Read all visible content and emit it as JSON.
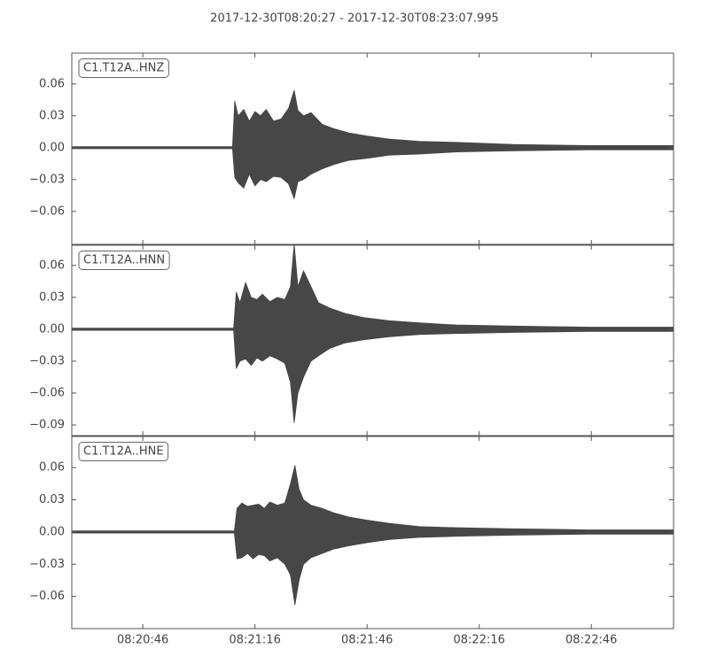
{
  "chart_data": [
    {
      "type": "seismogram",
      "title": "2017-12-30T08:20:27  -  2017-12-30T08:23:07.995",
      "label": "C1.T12A..HNZ",
      "color": "#474747",
      "xlim": [
        "08:20:27",
        "08:23:07.995"
      ],
      "ylim": [
        -0.091,
        0.089
      ],
      "yticks": [
        0.06,
        0.03,
        {
          "value": 0,
          "label": "0.00"
        },
        {
          "value": -0.03,
          "label": "−0.03"
        },
        {
          "value": -0.06,
          "label": "−0.06"
        }
      ],
      "x": [
        "08:20:27",
        "08:21:10",
        "08:21:10.6",
        "08:21:11.5",
        "08:21:13",
        "08:21:14.5",
        "08:21:16",
        "08:21:17.5",
        "08:21:19",
        "08:21:21",
        "08:21:23",
        "08:21:25",
        "08:21:26.5",
        "08:21:27.5",
        "08:21:29",
        "08:21:31",
        "08:21:34",
        "08:21:37",
        "08:21:41",
        "08:21:46",
        "08:21:52",
        "08:22:00",
        "08:22:10",
        "08:22:25",
        "08:22:45",
        "08:23:07.995"
      ],
      "upper": [
        0.001,
        0.001,
        0.044,
        0.03,
        0.036,
        0.025,
        0.034,
        0.03,
        0.036,
        0.025,
        0.027,
        0.037,
        0.054,
        0.035,
        0.03,
        0.033,
        0.022,
        0.018,
        0.014,
        0.011,
        0.008,
        0.006,
        0.005,
        0.003,
        0.002,
        0.002
      ],
      "lower": [
        -0.001,
        -0.001,
        -0.028,
        -0.033,
        -0.038,
        -0.025,
        -0.036,
        -0.03,
        -0.032,
        -0.027,
        -0.028,
        -0.034,
        -0.048,
        -0.032,
        -0.03,
        -0.025,
        -0.02,
        -0.016,
        -0.012,
        -0.01,
        -0.007,
        -0.006,
        -0.004,
        -0.003,
        -0.002,
        -0.002
      ]
    },
    {
      "type": "seismogram",
      "label": "C1.T12A..HNN",
      "color": "#474747",
      "xlim": [
        "08:20:27",
        "08:23:07.995"
      ],
      "ylim": [
        -0.1,
        0.079
      ],
      "yticks": [
        0.06,
        0.03,
        {
          "value": 0,
          "label": "0.00"
        },
        {
          "value": -0.03,
          "label": "−0.03"
        },
        {
          "value": -0.06,
          "label": "−0.06"
        },
        {
          "value": -0.09,
          "label": "−0.09"
        }
      ],
      "x": [
        "08:20:27",
        "08:21:10.3",
        "08:21:11",
        "08:21:12",
        "08:21:13.5",
        "08:21:15",
        "08:21:16.5",
        "08:21:18",
        "08:21:20",
        "08:21:22",
        "08:21:24",
        "08:21:25.5",
        "08:21:26.5",
        "08:21:27.5",
        "08:21:29",
        "08:21:31",
        "08:21:33",
        "08:21:36",
        "08:21:40",
        "08:21:45",
        "08:21:52",
        "08:22:00",
        "08:22:10",
        "08:22:25",
        "08:22:45",
        "08:23:07.995"
      ],
      "upper": [
        0.001,
        0.001,
        0.035,
        0.025,
        0.044,
        0.03,
        0.028,
        0.033,
        0.026,
        0.03,
        0.028,
        0.04,
        0.08,
        0.04,
        0.055,
        0.04,
        0.025,
        0.02,
        0.015,
        0.011,
        0.008,
        0.006,
        0.004,
        0.003,
        0.002,
        0.002
      ],
      "lower": [
        -0.001,
        -0.001,
        -0.037,
        -0.03,
        -0.028,
        -0.034,
        -0.027,
        -0.03,
        -0.025,
        -0.028,
        -0.032,
        -0.05,
        -0.088,
        -0.06,
        -0.045,
        -0.03,
        -0.025,
        -0.018,
        -0.013,
        -0.01,
        -0.007,
        -0.005,
        -0.004,
        -0.003,
        -0.002,
        -0.002
      ]
    },
    {
      "type": "seismogram",
      "label": "C1.T12A..HNE",
      "color": "#474747",
      "xlim": [
        "08:20:27",
        "08:23:07.995"
      ],
      "ylim": [
        -0.09,
        0.089
      ],
      "yticks": [
        0.06,
        0.03,
        {
          "value": 0,
          "label": "0.00"
        },
        {
          "value": -0.03,
          "label": "−0.03"
        },
        {
          "value": -0.06,
          "label": "−0.06"
        }
      ],
      "xticks": [
        "08:20:46",
        "08:21:16",
        "08:21:46",
        "08:22:16",
        "08:22:46"
      ],
      "x": [
        "08:20:27",
        "08:21:10.5",
        "08:21:11.2",
        "08:21:12.5",
        "08:21:14",
        "08:21:15.5",
        "08:21:17",
        "08:21:18.5",
        "08:21:20",
        "08:21:22",
        "08:21:24",
        "08:21:25.5",
        "08:21:26.7",
        "08:21:27.8",
        "08:21:29",
        "08:21:31",
        "08:21:34",
        "08:21:37",
        "08:21:41",
        "08:21:46",
        "08:21:52",
        "08:22:00",
        "08:22:10",
        "08:22:25",
        "08:22:45",
        "08:23:07.995"
      ],
      "upper": [
        0.001,
        0.001,
        0.022,
        0.027,
        0.024,
        0.025,
        0.026,
        0.022,
        0.028,
        0.025,
        0.027,
        0.045,
        0.062,
        0.04,
        0.03,
        0.025,
        0.022,
        0.018,
        0.014,
        0.011,
        0.008,
        0.005,
        0.004,
        0.003,
        0.002,
        0.002
      ],
      "lower": [
        -0.001,
        -0.001,
        -0.025,
        -0.024,
        -0.02,
        -0.025,
        -0.021,
        -0.022,
        -0.027,
        -0.024,
        -0.03,
        -0.04,
        -0.068,
        -0.045,
        -0.03,
        -0.024,
        -0.02,
        -0.016,
        -0.013,
        -0.01,
        -0.007,
        -0.005,
        -0.004,
        -0.003,
        -0.002,
        -0.002
      ]
    }
  ]
}
